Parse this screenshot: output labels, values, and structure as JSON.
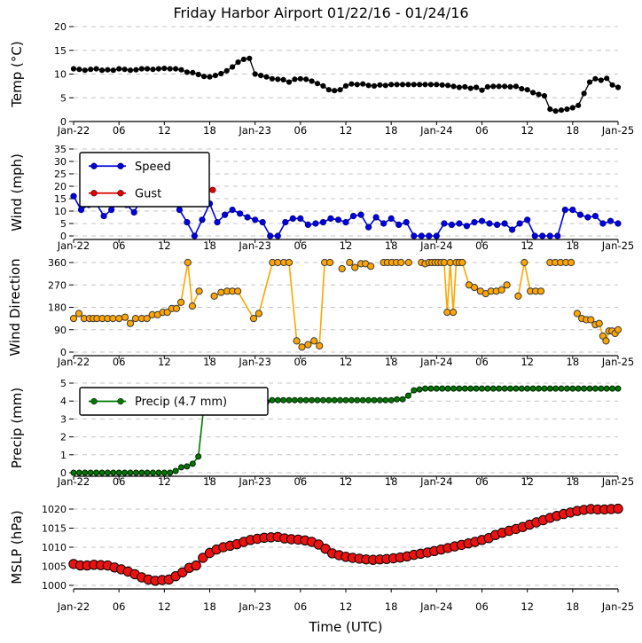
{
  "figure": {
    "title": "Friday Harbor Airport 01/22/16 - 01/24/16"
  },
  "x_axis": {
    "xlabel": "Time (UTC)",
    "tick_hours": [
      0,
      6,
      12,
      18,
      24,
      30,
      36,
      42,
      48,
      54,
      60,
      66,
      72
    ],
    "tick_labels": [
      "Jan-22",
      "06",
      "12",
      "18",
      "Jan-23",
      "06",
      "12",
      "18",
      "Jan-24",
      "06",
      "12",
      "18",
      "Jan-25"
    ]
  },
  "chart_data": [
    {
      "type": "line",
      "title": "Friday Harbor Airport 01/22/16 - 01/24/16",
      "ylabel": "Temp (°C)",
      "yticks": [
        0,
        5,
        10,
        15,
        20
      ],
      "ylim": [
        0,
        20
      ],
      "grid": true,
      "series": [
        {
          "name": "Temp",
          "color": "#000000",
          "marker_fill": "#000000",
          "marker_edge": "#000000",
          "x_range": [
            0,
            72
          ],
          "values": [
            11.1,
            11.0,
            10.8,
            11.0,
            11.1,
            10.8,
            10.9,
            10.8,
            11.1,
            11.0,
            10.8,
            10.9,
            11.1,
            11.1,
            11.0,
            11.1,
            11.2,
            11.1,
            11.1,
            10.9,
            10.4,
            10.3,
            9.9,
            9.5,
            9.4,
            9.7,
            10.1,
            10.7,
            11.5,
            12.5,
            13.1,
            13.3,
            10.0,
            9.7,
            9.4,
            9.0,
            8.9,
            8.8,
            8.3,
            8.9,
            9.0,
            8.9,
            8.5,
            8.0,
            7.5,
            6.7,
            6.5,
            6.7,
            7.5,
            7.9,
            7.8,
            7.9,
            7.6,
            7.5,
            7.7,
            7.6,
            7.8,
            7.8,
            7.8,
            7.8,
            7.8,
            7.8,
            7.8,
            7.8,
            7.8,
            7.7,
            7.6,
            7.4,
            7.2,
            7.3,
            7.0,
            7.2,
            6.6,
            7.3,
            7.4,
            7.4,
            7.4,
            7.3,
            7.4,
            6.9,
            6.7,
            6.1,
            5.7,
            5.4,
            2.6,
            2.2,
            2.4,
            2.6,
            2.9,
            3.4,
            5.9,
            8.3,
            9.0,
            8.7,
            9.1,
            7.7,
            7.2
          ]
        }
      ]
    },
    {
      "type": "line",
      "ylabel": "Wind (mph)",
      "yticks": [
        0,
        5,
        10,
        15,
        20,
        25,
        30,
        35
      ],
      "ylim": [
        0,
        35
      ],
      "grid": true,
      "legend": {
        "position": "upper-left",
        "entries": [
          {
            "label": "Speed",
            "color": "#0000dd"
          },
          {
            "label": "Gust",
            "color": "#dd0000"
          }
        ]
      },
      "series": [
        {
          "name": "Speed",
          "color": "#0000dd",
          "marker_fill": "#0000dd",
          "marker_edge": "#000066",
          "x_range": [
            0,
            72
          ],
          "values": [
            16,
            10.5,
            12.5,
            13,
            8,
            10.5,
            14,
            12.5,
            9.5,
            15.5,
            17,
            17.5,
            18.5,
            16.5,
            10.5,
            5.5,
            0,
            6.5,
            13,
            5.5,
            8.5,
            10.5,
            9,
            7.5,
            6.5,
            5.5,
            0,
            0,
            5.5,
            7,
            7,
            4.5,
            5,
            5.5,
            7,
            6.5,
            5.5,
            8,
            8.5,
            3.5,
            7.5,
            5,
            7,
            4.5,
            5.5,
            0,
            0,
            0,
            0,
            5,
            4.5,
            5,
            4,
            5.5,
            6,
            5,
            4.5,
            5,
            2.5,
            5,
            6.5,
            0,
            0,
            0,
            0,
            10.5,
            10.5,
            8.5,
            7.5,
            8,
            5,
            6,
            5
          ]
        },
        {
          "name": "Gust",
          "color": "#dd0000",
          "marker_fill": "#dd0000",
          "marker_edge": "#660000",
          "x": [
            10.3,
            11,
            11.6,
            12.2,
            12.8,
            13.4,
            null,
            18.4
          ],
          "y": [
            29.5,
            26.5,
            25.5,
            25.3,
            25.5,
            18.5,
            null,
            18.5
          ]
        }
      ]
    },
    {
      "type": "line",
      "ylabel": "Wind Direction",
      "yticks": [
        0,
        90,
        180,
        270,
        360
      ],
      "ylim": [
        0,
        360
      ],
      "grid": true,
      "series": [
        {
          "name": "Wind Direction",
          "color": "#ffa500",
          "marker_fill": "#ffa500",
          "marker_edge": "#3a3a3a",
          "x": [
            0,
            0.7,
            1.4,
            2.1,
            2.6,
            3.1,
            3.8,
            4.5,
            5.2,
            6,
            6.8,
            7.5,
            8.2,
            9,
            9.7,
            10.4,
            11.1,
            11.8,
            12.4,
            13,
            13.6,
            14.2,
            15.1,
            15.7,
            16.6,
            null,
            18.6,
            19.5,
            20.3,
            21,
            21.7,
            23.8,
            24.5,
            26.3,
            27,
            27.8,
            28.5,
            29.5,
            30.2,
            31,
            31.8,
            32.5,
            33.2,
            33.9,
            null,
            35.5,
            null,
            36.5,
            37.2,
            38,
            38.6,
            39.3,
            null,
            41,
            41.5,
            42.1,
            42.7,
            43.3,
            null,
            44.3,
            null,
            46,
            46.5,
            47,
            47.4,
            47.8,
            48.2,
            48.6,
            49,
            49.4,
            49.8,
            50.2,
            50.6,
            51,
            51.4,
            52.3,
            53,
            53.8,
            54.5,
            55.2,
            55.9,
            56.6,
            57.3,
            null,
            58.8,
            59.6,
            60.4,
            61.1,
            61.8,
            null,
            63,
            63.7,
            64.4,
            65.1,
            65.8,
            null,
            66.6,
            67.2,
            67.8,
            68.4,
            69,
            69.5,
            70,
            70.4,
            70.8,
            71.2,
            71.6,
            72
          ],
          "y": [
            135,
            155,
            135,
            135,
            135,
            135,
            135,
            135,
            135,
            135,
            140,
            115,
            135,
            135,
            135,
            150,
            150,
            160,
            160,
            175,
            175,
            200,
            360,
            185,
            245,
            null,
            225,
            240,
            245,
            245,
            245,
            135,
            155,
            360,
            360,
            360,
            360,
            45,
            20,
            30,
            45,
            25,
            360,
            360,
            null,
            335,
            null,
            360,
            340,
            355,
            355,
            345,
            null,
            360,
            360,
            360,
            360,
            360,
            null,
            360,
            null,
            360,
            355,
            360,
            360,
            360,
            360,
            360,
            360,
            160,
            360,
            160,
            360,
            360,
            360,
            270,
            260,
            245,
            235,
            245,
            245,
            250,
            270,
            null,
            225,
            360,
            245,
            245,
            245,
            null,
            360,
            360,
            360,
            360,
            360,
            null,
            155,
            135,
            130,
            130,
            110,
            115,
            65,
            45,
            85,
            85,
            75,
            90
          ]
        }
      ]
    },
    {
      "type": "line",
      "ylabel": "Precip (mm)",
      "yticks": [
        0,
        1,
        2,
        3,
        4,
        5
      ],
      "ylim": [
        0,
        5
      ],
      "grid": true,
      "legend": {
        "position": "upper-left",
        "entries": [
          {
            "label": "Precip (4.7 mm)",
            "color": "#007700"
          }
        ]
      },
      "series": [
        {
          "name": "Precip",
          "color": "#007700",
          "marker_fill": "#007700",
          "marker_edge": "#002200",
          "x_range": [
            0,
            72
          ],
          "values": [
            0,
            0,
            0,
            0,
            0,
            0,
            0,
            0,
            0,
            0,
            0,
            0,
            0,
            0,
            0,
            0,
            0,
            0,
            0.1,
            0.3,
            0.35,
            0.5,
            0.9,
            3.8,
            3.8,
            3.8,
            3.8,
            3.8,
            3.8,
            3.8,
            3.8,
            3.8,
            3.8,
            3.8,
            3.95,
            4.05,
            4.05,
            4.05,
            4.05,
            4.05,
            4.05,
            4.05,
            4.05,
            4.05,
            4.05,
            4.05,
            4.05,
            4.05,
            4.05,
            4.05,
            4.05,
            4.05,
            4.05,
            4.05,
            4.05,
            4.05,
            4.05,
            4.1,
            4.1,
            4.3,
            4.6,
            4.65,
            4.7,
            4.7,
            4.7,
            4.7,
            4.7,
            4.7,
            4.7,
            4.7,
            4.7,
            4.7,
            4.7,
            4.7,
            4.7,
            4.7,
            4.7,
            4.7,
            4.7,
            4.7,
            4.7,
            4.7,
            4.7,
            4.7,
            4.7,
            4.7,
            4.7,
            4.7,
            4.7,
            4.7,
            4.7,
            4.7,
            4.7,
            4.7,
            4.7,
            4.7,
            4.7
          ]
        }
      ]
    },
    {
      "type": "line",
      "ylabel": "MSLP (hPa)",
      "xlabel": "Time (UTC)",
      "yticks": [
        1000,
        1005,
        1010,
        1015,
        1020
      ],
      "ylim": [
        1000,
        1020
      ],
      "grid": true,
      "series": [
        {
          "name": "MSLP",
          "color": "#cc0000",
          "marker_fill": "#ee1111",
          "marker_edge": "#000000",
          "x_range": [
            0,
            72
          ],
          "values": [
            1005.6,
            1005.2,
            1005.2,
            1005.4,
            1005.3,
            1005.2,
            1004.7,
            1004.2,
            1003.6,
            1002.9,
            1002.1,
            1001.5,
            1001.2,
            1001.4,
            1001.5,
            1002.4,
            1003.4,
            1004.6,
            1005.2,
            1007.2,
            1008.5,
            1009.4,
            1010.0,
            1010.4,
            1010.8,
            1011.4,
            1011.9,
            1012.2,
            1012.5,
            1012.6,
            1012.7,
            1012.3,
            1012.1,
            1012.0,
            1011.8,
            1011.4,
            1010.7,
            1009.6,
            1008.4,
            1007.9,
            1007.5,
            1007.2,
            1007.0,
            1006.8,
            1006.7,
            1006.8,
            1006.9,
            1007.1,
            1007.3,
            1007.6,
            1008.0,
            1008.3,
            1008.6,
            1009.0,
            1009.4,
            1009.8,
            1010.2,
            1010.6,
            1011.0,
            1011.4,
            1011.9,
            1012.4,
            1013.2,
            1013.8,
            1014.3,
            1014.8,
            1015.3,
            1015.9,
            1016.5,
            1017.1,
            1017.7,
            1018.2,
            1018.7,
            1019.1,
            1019.5,
            1019.8,
            1020.0,
            1019.9,
            1019.9,
            1020.0,
            1020.1
          ]
        }
      ]
    }
  ]
}
